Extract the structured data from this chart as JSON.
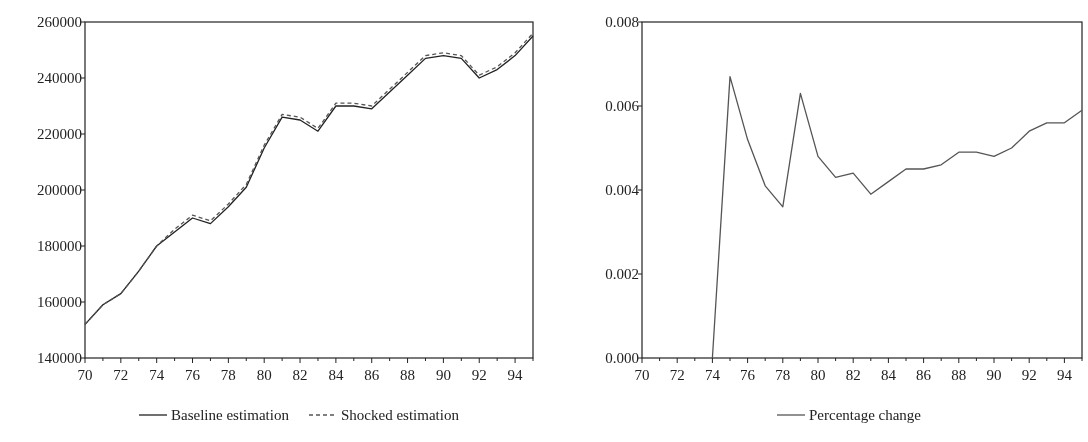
{
  "chart_data": [
    {
      "type": "line",
      "x": [
        1970,
        1971,
        1972,
        1973,
        1974,
        1975,
        1976,
        1977,
        1978,
        1979,
        1980,
        1981,
        1982,
        1983,
        1984,
        1985,
        1986,
        1987,
        1988,
        1989,
        1990,
        1991,
        1992,
        1993,
        1994,
        1995
      ],
      "series": [
        {
          "name": "Baseline estimation",
          "color": "#222222",
          "line_style": "solid",
          "values": [
            152000,
            159000,
            163000,
            171000,
            180000,
            185000,
            190000,
            188000,
            194000,
            201000,
            215000,
            226000,
            225000,
            221000,
            230000,
            230000,
            229000,
            235000,
            241000,
            247000,
            248000,
            247000,
            240000,
            243000,
            248000,
            255000
          ]
        },
        {
          "name": "Shocked estimation",
          "color": "#555555",
          "line_style": "dashed",
          "values": [
            152000,
            159000,
            163000,
            171000,
            180000,
            186000,
            191000,
            189000,
            195000,
            202000,
            216000,
            227000,
            226000,
            222000,
            231000,
            231000,
            230000,
            236000,
            242000,
            248000,
            249000,
            248000,
            241000,
            244000,
            249000,
            256000
          ]
        }
      ],
      "xlim": [
        1970,
        1995
      ],
      "xticks": [
        {
          "value": 1970,
          "label": "70"
        },
        {
          "value": 1971,
          "label": null
        },
        {
          "value": 1972,
          "label": "72"
        },
        {
          "value": 1973,
          "label": null
        },
        {
          "value": 1974,
          "label": "74"
        },
        {
          "value": 1975,
          "label": null
        },
        {
          "value": 1976,
          "label": "76"
        },
        {
          "value": 1977,
          "label": null
        },
        {
          "value": 1978,
          "label": "78"
        },
        {
          "value": 1979,
          "label": null
        },
        {
          "value": 1980,
          "label": "80"
        },
        {
          "value": 1981,
          "label": null
        },
        {
          "value": 1982,
          "label": "82"
        },
        {
          "value": 1983,
          "label": null
        },
        {
          "value": 1984,
          "label": "84"
        },
        {
          "value": 1985,
          "label": null
        },
        {
          "value": 1986,
          "label": "86"
        },
        {
          "value": 1987,
          "label": null
        },
        {
          "value": 1988,
          "label": "88"
        },
        {
          "value": 1989,
          "label": null
        },
        {
          "value": 1990,
          "label": "90"
        },
        {
          "value": 1991,
          "label": null
        },
        {
          "value": 1992,
          "label": "92"
        },
        {
          "value": 1993,
          "label": null
        },
        {
          "value": 1994,
          "label": "94"
        },
        {
          "value": 1995,
          "label": null
        }
      ],
      "ylim": [
        140000,
        260000
      ],
      "yticks": [
        140000,
        160000,
        180000,
        200000,
        220000,
        240000,
        260000
      ],
      "grid": false,
      "legend": "bottom"
    },
    {
      "type": "line",
      "x": [
        1974,
        1975,
        1976,
        1977,
        1978,
        1979,
        1980,
        1981,
        1982,
        1983,
        1984,
        1985,
        1986,
        1987,
        1988,
        1989,
        1990,
        1991,
        1992,
        1993,
        1994,
        1995
      ],
      "series": [
        {
          "name": "Percentage change",
          "color": "#555555",
          "line_style": "solid",
          "values": [
            0.0,
            0.0067,
            0.0052,
            0.0041,
            0.0036,
            0.0063,
            0.0048,
            0.0043,
            0.0044,
            0.0039,
            0.0042,
            0.0045,
            0.0045,
            0.0046,
            0.0049,
            0.0049,
            0.0048,
            0.005,
            0.0054,
            0.0056,
            0.0056,
            0.0059
          ]
        }
      ],
      "xlim": [
        1970,
        1995
      ],
      "xticks": [
        {
          "value": 1970,
          "label": "70"
        },
        {
          "value": 1971,
          "label": null
        },
        {
          "value": 1972,
          "label": "72"
        },
        {
          "value": 1973,
          "label": null
        },
        {
          "value": 1974,
          "label": "74"
        },
        {
          "value": 1975,
          "label": null
        },
        {
          "value": 1976,
          "label": "76"
        },
        {
          "value": 1977,
          "label": null
        },
        {
          "value": 1978,
          "label": "78"
        },
        {
          "value": 1979,
          "label": null
        },
        {
          "value": 1980,
          "label": "80"
        },
        {
          "value": 1981,
          "label": null
        },
        {
          "value": 1982,
          "label": "82"
        },
        {
          "value": 1983,
          "label": null
        },
        {
          "value": 1984,
          "label": "84"
        },
        {
          "value": 1985,
          "label": null
        },
        {
          "value": 1986,
          "label": "86"
        },
        {
          "value": 1987,
          "label": null
        },
        {
          "value": 1988,
          "label": "88"
        },
        {
          "value": 1989,
          "label": null
        },
        {
          "value": 1990,
          "label": "90"
        },
        {
          "value": 1991,
          "label": null
        },
        {
          "value": 1992,
          "label": "92"
        },
        {
          "value": 1993,
          "label": null
        },
        {
          "value": 1994,
          "label": "94"
        },
        {
          "value": 1995,
          "label": null
        }
      ],
      "ylim": [
        0.0,
        0.008
      ],
      "yticks": [
        {
          "value": 0.0,
          "label": "0.000"
        },
        {
          "value": 0.002,
          "label": "0.002"
        },
        {
          "value": 0.004,
          "label": "0.004"
        },
        {
          "value": 0.006,
          "label": "0.006"
        },
        {
          "value": 0.008,
          "label": "0.008"
        }
      ],
      "grid": false,
      "legend": "bottom"
    }
  ]
}
